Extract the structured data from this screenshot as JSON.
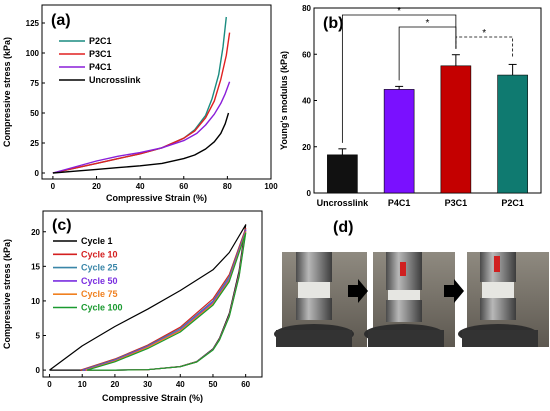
{
  "panels": {
    "a": "(a)",
    "b": "(b)",
    "c": "(c)",
    "d": "(d)"
  },
  "chart_data": [
    {
      "panel": "a",
      "type": "line",
      "xlabel": "Compressive Strain (%)",
      "ylabel": "Compressive stress (kPa)",
      "xlim": [
        -5,
        100
      ],
      "ylim": [
        -5,
        140
      ],
      "xticks": [
        0,
        20,
        40,
        60,
        80,
        100
      ],
      "yticks": [
        0,
        25,
        50,
        75,
        100,
        125
      ],
      "legend_position": "top-left",
      "series": [
        {
          "name": "P2C1",
          "color": "#1a8c80",
          "x": [
            0,
            10,
            20,
            30,
            40,
            50,
            60,
            65,
            70,
            73,
            76,
            78,
            79.5
          ],
          "y": [
            0,
            4,
            8,
            12,
            16,
            21,
            29,
            36,
            48,
            62,
            82,
            105,
            130
          ]
        },
        {
          "name": "P3C1",
          "color": "#e02020",
          "x": [
            0,
            10,
            20,
            30,
            40,
            50,
            60,
            65,
            70,
            74,
            77,
            79.5,
            81
          ],
          "y": [
            0,
            4,
            8,
            12,
            16,
            21,
            29,
            35,
            46,
            60,
            78,
            98,
            117
          ]
        },
        {
          "name": "P4C1",
          "color": "#8a1fd9",
          "x": [
            0,
            10,
            20,
            30,
            40,
            50,
            60,
            66,
            70,
            74,
            77,
            79,
            81
          ],
          "y": [
            0,
            5,
            10,
            14,
            17,
            21,
            27,
            33,
            40,
            49,
            58,
            66,
            76
          ]
        },
        {
          "name": "Uncrosslink",
          "color": "#000000",
          "x": [
            0,
            10,
            20,
            30,
            40,
            50,
            60,
            65,
            70,
            74,
            77,
            79,
            80.5
          ],
          "y": [
            0,
            1.5,
            3,
            4.5,
            6,
            8,
            12,
            15,
            20,
            26,
            33,
            41,
            50
          ]
        }
      ]
    },
    {
      "panel": "b",
      "type": "bar",
      "ylabel": "Young's modulus (kPa)",
      "categories": [
        "Uncrosslink",
        "P4C1",
        "P3C1",
        "P2C1"
      ],
      "values": [
        16.5,
        44.8,
        55,
        51
      ],
      "errors": [
        2.6,
        1.3,
        4.8,
        4.6
      ],
      "colors": [
        "#111111",
        "#7a10ff",
        "#c40000",
        "#0f7a70"
      ],
      "ylim": [
        0,
        80
      ],
      "yticks": [
        0,
        20,
        40,
        60,
        80
      ],
      "significance": [
        {
          "from": 0,
          "to": 2,
          "label": "*",
          "style": "solid"
        },
        {
          "from": 1,
          "to": 2,
          "label": "*",
          "style": "solid"
        },
        {
          "from": 2,
          "to": 3,
          "label": "*",
          "style": "dashed"
        }
      ]
    },
    {
      "panel": "c",
      "type": "line",
      "xlabel": "Compressive Strain (%)",
      "ylabel": "Compressive stress (kPa)",
      "xlim": [
        -2,
        65
      ],
      "ylim": [
        -1,
        23
      ],
      "xticks": [
        0,
        10,
        20,
        30,
        40,
        50,
        60
      ],
      "yticks": [
        0,
        5,
        10,
        15,
        20
      ],
      "legend_position": "top-left",
      "series": [
        {
          "name": "Cycle 1",
          "color": "#000000",
          "start": 0,
          "loading": {
            "x": [
              0,
              10,
              20,
              30,
              40,
              50,
              55,
              60
            ],
            "y": [
              0,
              3.5,
              6.3,
              8.8,
              11.5,
              14.5,
              17,
              21
            ]
          }
        },
        {
          "name": "Cycle 10",
          "color": "#d42020",
          "start": 9.5,
          "loading": {
            "x": [
              9.5,
              20,
              30,
              40,
              50,
              55,
              60
            ],
            "y": [
              0,
              1.6,
              3.6,
              6.2,
              10.3,
              13.8,
              20.5
            ]
          }
        },
        {
          "name": "Cycle 25",
          "color": "#3a86a8",
          "start": 10,
          "loading": {
            "x": [
              10,
              20,
              30,
              40,
              50,
              55,
              60
            ],
            "y": [
              0,
              1.5,
              3.5,
              6,
              10,
              13.5,
              20.3
            ]
          }
        },
        {
          "name": "Cycle 50",
          "color": "#7a2ee0",
          "start": 10.5,
          "loading": {
            "x": [
              10.5,
              20,
              30,
              40,
              50,
              55,
              60
            ],
            "y": [
              0,
              1.4,
              3.4,
              5.8,
              9.8,
              13.2,
              20.2
            ]
          }
        },
        {
          "name": "Cycle 75",
          "color": "#f08020",
          "start": 11,
          "loading": {
            "x": [
              11,
              20,
              30,
              40,
              50,
              55,
              60
            ],
            "y": [
              0,
              1.3,
              3.3,
              5.7,
              9.6,
              13,
              20
            ]
          }
        },
        {
          "name": "Cycle 100",
          "color": "#1a9a30",
          "start": 11.5,
          "loading": {
            "x": [
              11.5,
              20,
              30,
              40,
              50,
              55,
              60
            ],
            "y": [
              0,
              1.2,
              3.1,
              5.5,
              9.4,
              12.8,
              19.8
            ]
          }
        }
      ],
      "unloading": {
        "x": [
          60,
          58,
          55,
          52,
          50,
          45,
          40,
          30,
          20,
          15,
          11.5
        ],
        "y": [
          20.5,
          14,
          8,
          4.5,
          3,
          1.2,
          0.5,
          0.05,
          0,
          0,
          0
        ]
      }
    }
  ]
}
